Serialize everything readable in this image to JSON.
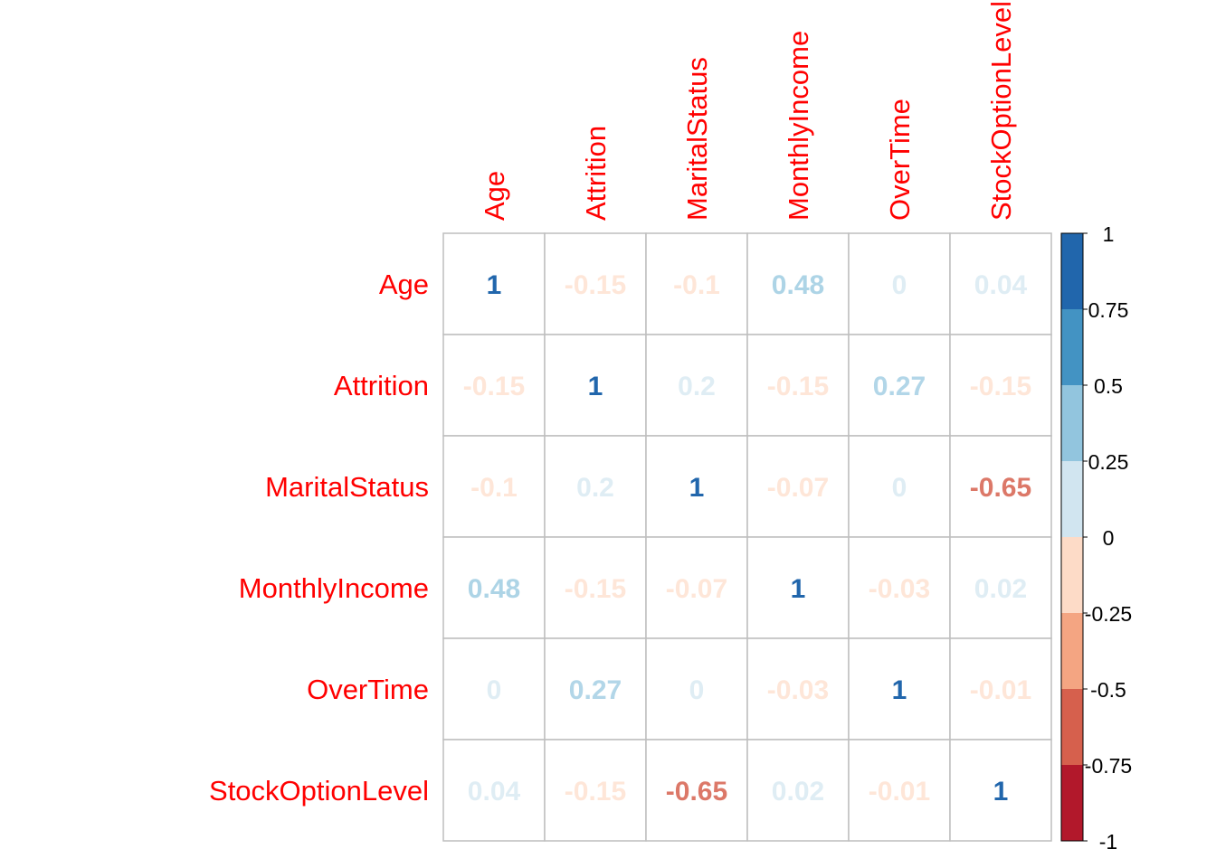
{
  "chart_data": {
    "type": "heatmap",
    "variables": [
      "Age",
      "Attrition",
      "MaritalStatus",
      "MonthlyIncome",
      "OverTime",
      "StockOptionLevel"
    ],
    "matrix": [
      [
        "1",
        "-0.15",
        "-0.1",
        "0.48",
        "0",
        "0.04"
      ],
      [
        "-0.15",
        "1",
        "0.2",
        "-0.15",
        "0.27",
        "-0.15"
      ],
      [
        "-0.1",
        "0.2",
        "1",
        "-0.07",
        "0",
        "-0.65"
      ],
      [
        "0.48",
        "-0.15",
        "-0.07",
        "1",
        "-0.03",
        "0.02"
      ],
      [
        "0",
        "0.27",
        "0",
        "-0.03",
        "1",
        "-0.01"
      ],
      [
        "0.04",
        "-0.15",
        "-0.65",
        "0.02",
        "-0.01",
        "1"
      ]
    ],
    "color_range": [
      -1,
      1
    ],
    "legend_ticks": [
      "1",
      "0.75",
      "0.5",
      "0.25",
      "0",
      "-0.25",
      "-0.5",
      "-0.75",
      "-1"
    ],
    "legend_bins": [
      {
        "range": [
          0.75,
          1
        ],
        "color": "#2166ac"
      },
      {
        "range": [
          0.5,
          0.75
        ],
        "color": "#4393c3"
      },
      {
        "range": [
          0.25,
          0.5
        ],
        "color": "#92c5de"
      },
      {
        "range": [
          0,
          0.25
        ],
        "color": "#d1e5f0"
      },
      {
        "range": [
          -0.25,
          0
        ],
        "color": "#fddbc7"
      },
      {
        "range": [
          -0.5,
          -0.25
        ],
        "color": "#f4a582"
      },
      {
        "range": [
          -0.75,
          -0.5
        ],
        "color": "#d6604d"
      },
      {
        "range": [
          -1,
          -0.75
        ],
        "color": "#b2182b"
      }
    ],
    "label_color": "#ff0000",
    "grid_color": "#bebebe",
    "title": "",
    "xlabel": "",
    "ylabel": ""
  }
}
